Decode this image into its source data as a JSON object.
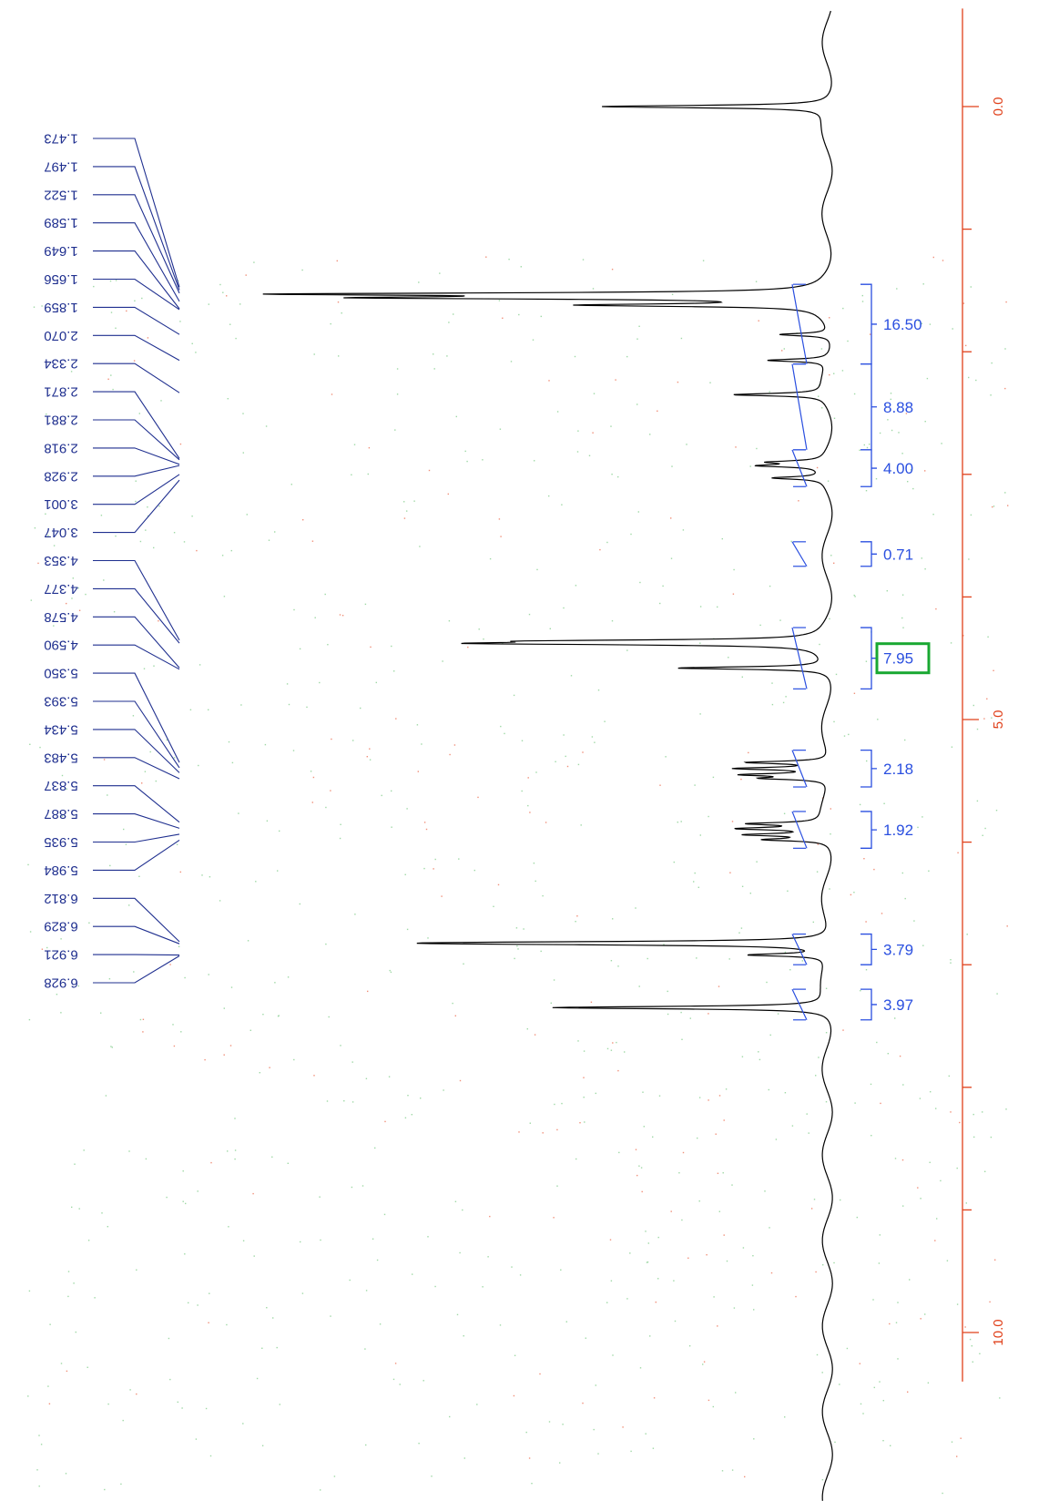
{
  "chart_data": {
    "type": "line",
    "orientation": "rotated-90",
    "axis": {
      "ticks": [
        0.0,
        5.0,
        10.0
      ],
      "tick_labels": [
        "0.0",
        "5.0",
        "10.0"
      ],
      "range": [
        -0.8,
        10.4
      ],
      "minor_step": 1.0,
      "color": "#e0401a"
    },
    "peak_labels": [
      "1.473",
      "1.497",
      "1.522",
      "1.589",
      "1.649",
      "1.656",
      "1.859",
      "2.070",
      "2.334",
      "2.871",
      "2.881",
      "2.918",
      "2.928",
      "3.001",
      "3.047",
      "4.353",
      "4.377",
      "4.578",
      "4.590",
      "5.350",
      "5.393",
      "5.434",
      "5.483",
      "5.837",
      "5.887",
      "5.935",
      "5.984",
      "6.812",
      "6.829",
      "6.921",
      "6.928"
    ],
    "integrals": [
      {
        "from": 1.45,
        "to": 2.1,
        "value": "16.50"
      },
      {
        "from": 2.1,
        "to": 2.8,
        "value": "8.88"
      },
      {
        "from": 2.8,
        "to": 3.1,
        "value": "4.00"
      },
      {
        "from": 3.55,
        "to": 3.75,
        "value": "0.71"
      },
      {
        "from": 4.25,
        "to": 4.75,
        "value": "7.95",
        "highlighted": true
      },
      {
        "from": 5.25,
        "to": 5.55,
        "value": "2.18"
      },
      {
        "from": 5.75,
        "to": 6.05,
        "value": "1.92"
      },
      {
        "from": 6.75,
        "to": 7.0,
        "value": "3.79"
      },
      {
        "from": 7.2,
        "to": 7.45,
        "value": "3.97"
      }
    ],
    "peaks": [
      {
        "ppm": 0.0,
        "intensity": 0.45
      },
      {
        "ppm": 1.53,
        "intensity": 1.0
      },
      {
        "ppm": 1.56,
        "intensity": 0.8
      },
      {
        "ppm": 1.62,
        "intensity": 0.45
      },
      {
        "ppm": 1.86,
        "intensity": 0.1
      },
      {
        "ppm": 2.07,
        "intensity": 0.12
      },
      {
        "ppm": 2.35,
        "intensity": 0.18
      },
      {
        "ppm": 2.9,
        "intensity": 0.1
      },
      {
        "ppm": 2.93,
        "intensity": 0.12
      },
      {
        "ppm": 3.03,
        "intensity": 0.1
      },
      {
        "ppm": 4.36,
        "intensity": 0.45
      },
      {
        "ppm": 4.38,
        "intensity": 0.6
      },
      {
        "ppm": 4.58,
        "intensity": 0.3
      },
      {
        "ppm": 5.35,
        "intensity": 0.16
      },
      {
        "ppm": 5.4,
        "intensity": 0.18
      },
      {
        "ppm": 5.45,
        "intensity": 0.16
      },
      {
        "ppm": 5.48,
        "intensity": 0.12
      },
      {
        "ppm": 5.85,
        "intensity": 0.14
      },
      {
        "ppm": 5.89,
        "intensity": 0.16
      },
      {
        "ppm": 5.94,
        "intensity": 0.15
      },
      {
        "ppm": 5.98,
        "intensity": 0.12
      },
      {
        "ppm": 6.82,
        "intensity": 0.52
      },
      {
        "ppm": 6.83,
        "intensity": 0.45
      },
      {
        "ppm": 6.92,
        "intensity": 0.15
      },
      {
        "ppm": 7.35,
        "intensity": 0.55
      }
    ]
  }
}
